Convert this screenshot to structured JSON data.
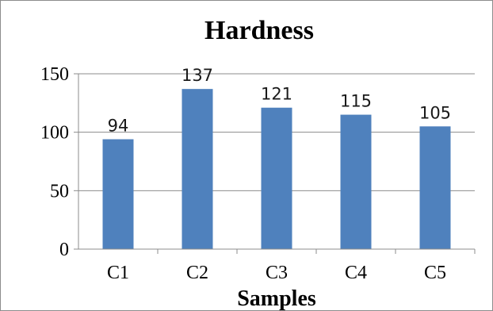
{
  "chart_data": {
    "type": "bar",
    "title": "Hardness",
    "xlabel": "Samples",
    "ylabel": "",
    "categories": [
      "C1",
      "C2",
      "C3",
      "C4",
      "C5"
    ],
    "values": [
      94,
      137,
      121,
      115,
      105
    ],
    "data_labels": [
      "94",
      "137",
      "121",
      "115",
      "105"
    ],
    "ylim": [
      0,
      150
    ],
    "yticks": [
      0,
      50,
      100,
      150
    ],
    "ytick_labels": [
      "0",
      "50",
      "100",
      "150"
    ],
    "grid": true,
    "legend": "none",
    "bar_color": "#4f81bd",
    "grid_color": "#8c8c8c"
  }
}
